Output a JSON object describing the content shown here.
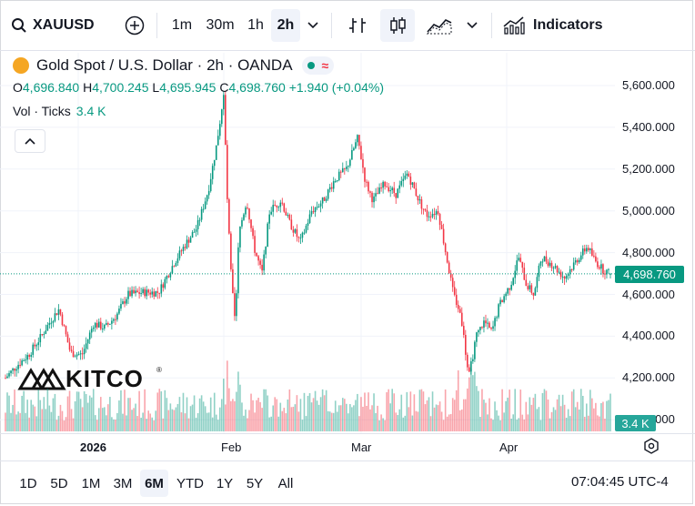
{
  "toolbar": {
    "symbol": "XAUUSD",
    "timeframes": [
      "1m",
      "30m",
      "1h",
      "2h"
    ],
    "active_timeframe": "2h",
    "indicators_label": "Indicators"
  },
  "header": {
    "title": "Gold Spot / U.S. Dollar · 2h · OANDA",
    "ohlc": {
      "o_label": "O",
      "o": "4,696.840",
      "h_label": "H",
      "h": "4,700.245",
      "l_label": "L",
      "l": "4,695.945",
      "c_label": "C",
      "c": "4,698.760",
      "change": "+1.940 (+0.04%)"
    },
    "volume_label": "Vol · Ticks",
    "volume_value": "3.4 K"
  },
  "watermark": "KITCO",
  "price_axis": {
    "ticks": [
      "5,600.000",
      "5,400.000",
      "5,200.000",
      "5,000.000",
      "4,800.000",
      "4,600.000",
      "4,400.000",
      "4,200.000",
      "4,000.000"
    ],
    "current_price": "4,698.760",
    "current_volume": "3.4 K"
  },
  "time_axis": {
    "labels": [
      "2026",
      "Feb",
      "Mar",
      "Apr"
    ]
  },
  "footer": {
    "ranges": [
      "1D",
      "5D",
      "1M",
      "3M",
      "6M",
      "YTD",
      "1Y",
      "5Y",
      "All"
    ],
    "active_range": "6M",
    "clock": "07:04:45 UTC-4"
  },
  "colors": {
    "up": "#089981",
    "down": "#f23645",
    "accent": "#f5a623"
  },
  "chart_data": {
    "type": "candlestick",
    "symbol": "XAUUSD",
    "interval": "2h",
    "y_range": [
      4000,
      5650
    ],
    "x_labels": [
      "2026",
      "Feb",
      "Mar",
      "Apr"
    ],
    "close_path": [
      {
        "t": 0,
        "p": 4200
      },
      {
        "t": 3,
        "p": 4260
      },
      {
        "t": 6,
        "p": 4310
      },
      {
        "t": 9,
        "p": 4390
      },
      {
        "t": 12,
        "p": 4480
      },
      {
        "t": 14,
        "p": 4530
      },
      {
        "t": 17,
        "p": 4320
      },
      {
        "t": 20,
        "p": 4310
      },
      {
        "t": 23,
        "p": 4460
      },
      {
        "t": 26,
        "p": 4440
      },
      {
        "t": 29,
        "p": 4500
      },
      {
        "t": 32,
        "p": 4600
      },
      {
        "t": 36,
        "p": 4610
      },
      {
        "t": 40,
        "p": 4610
      },
      {
        "t": 44,
        "p": 4750
      },
      {
        "t": 47,
        "p": 4840
      },
      {
        "t": 50,
        "p": 4920
      },
      {
        "t": 53,
        "p": 5100
      },
      {
        "t": 55,
        "p": 5300
      },
      {
        "t": 57,
        "p": 5550
      },
      {
        "t": 58,
        "p": 5020
      },
      {
        "t": 59,
        "p": 4670
      },
      {
        "t": 60,
        "p": 4450
      },
      {
        "t": 61,
        "p": 4900
      },
      {
        "t": 63,
        "p": 5050
      },
      {
        "t": 65,
        "p": 4820
      },
      {
        "t": 67,
        "p": 4700
      },
      {
        "t": 69,
        "p": 5000
      },
      {
        "t": 72,
        "p": 5050
      },
      {
        "t": 74,
        "p": 4950
      },
      {
        "t": 77,
        "p": 4850
      },
      {
        "t": 80,
        "p": 5000
      },
      {
        "t": 83,
        "p": 5050
      },
      {
        "t": 86,
        "p": 5150
      },
      {
        "t": 89,
        "p": 5200
      },
      {
        "t": 92,
        "p": 5350
      },
      {
        "t": 94,
        "p": 5140
      },
      {
        "t": 96,
        "p": 5050
      },
      {
        "t": 99,
        "p": 5130
      },
      {
        "t": 102,
        "p": 5080
      },
      {
        "t": 105,
        "p": 5180
      },
      {
        "t": 108,
        "p": 5050
      },
      {
        "t": 110,
        "p": 4980
      },
      {
        "t": 113,
        "p": 5000
      },
      {
        "t": 115,
        "p": 4800
      },
      {
        "t": 117,
        "p": 4600
      },
      {
        "t": 119,
        "p": 4500
      },
      {
        "t": 121,
        "p": 4200
      },
      {
        "t": 123,
        "p": 4400
      },
      {
        "t": 125,
        "p": 4470
      },
      {
        "t": 127,
        "p": 4420
      },
      {
        "t": 129,
        "p": 4550
      },
      {
        "t": 132,
        "p": 4650
      },
      {
        "t": 134,
        "p": 4780
      },
      {
        "t": 136,
        "p": 4650
      },
      {
        "t": 138,
        "p": 4600
      },
      {
        "t": 140,
        "p": 4780
      },
      {
        "t": 143,
        "p": 4740
      },
      {
        "t": 146,
        "p": 4680
      },
      {
        "t": 149,
        "p": 4760
      },
      {
        "t": 152,
        "p": 4830
      },
      {
        "t": 154,
        "p": 4760
      },
      {
        "t": 156,
        "p": 4720
      },
      {
        "t": 158,
        "p": 4698.76
      }
    ],
    "last": {
      "open": 4696.84,
      "high": 4700.245,
      "low": 4695.945,
      "close": 4698.76,
      "change": 1.94,
      "change_pct": 0.04
    },
    "volume_last": "3.4 K"
  }
}
